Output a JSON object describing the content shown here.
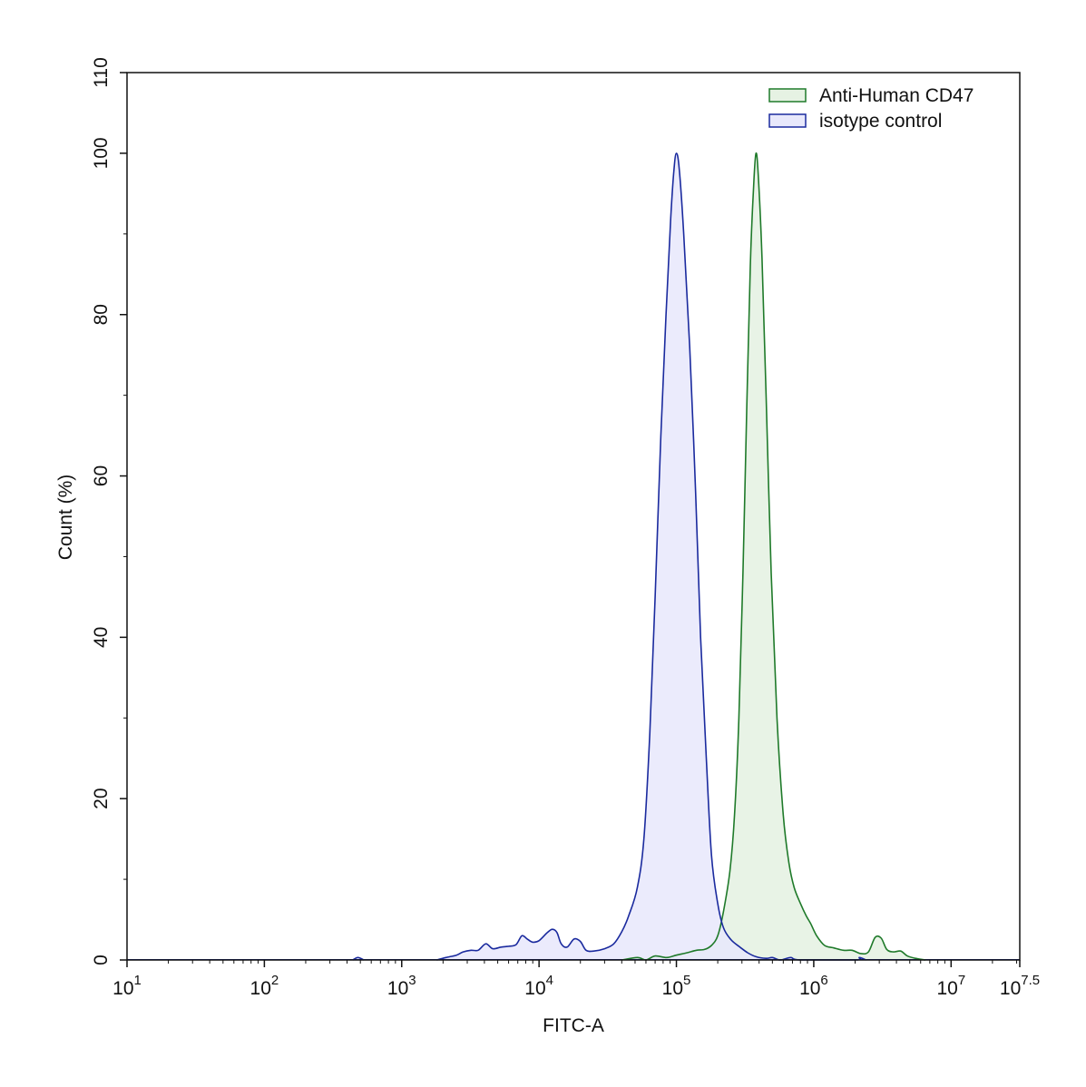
{
  "chart_data": {
    "type": "area",
    "xlabel": "FITC-A",
    "ylabel": "Count  (%)",
    "xscale": "log",
    "xlim": [
      10,
      31622776.6
    ],
    "ylim": [
      0,
      110
    ],
    "x_ticks": [
      {
        "value": 10,
        "base": "10",
        "exp": "1"
      },
      {
        "value": 100,
        "base": "10",
        "exp": "2"
      },
      {
        "value": 1000,
        "base": "10",
        "exp": "3"
      },
      {
        "value": 10000,
        "base": "10",
        "exp": "4"
      },
      {
        "value": 100000,
        "base": "10",
        "exp": "5"
      },
      {
        "value": 1000000,
        "base": "10",
        "exp": "6"
      },
      {
        "value": 10000000,
        "base": "10",
        "exp": "7"
      },
      {
        "value": 31622776.6,
        "base": "10",
        "exp": "7.5"
      }
    ],
    "y_ticks": [
      {
        "value": 0,
        "label": "0"
      },
      {
        "value": 20,
        "label": "20"
      },
      {
        "value": 40,
        "label": "40"
      },
      {
        "value": 60,
        "label": "60"
      },
      {
        "value": 80,
        "label": "80"
      },
      {
        "value": 100,
        "label": "100"
      },
      {
        "value": 110,
        "label": "110"
      }
    ],
    "legend_position": "top-right",
    "grid": false,
    "series": [
      {
        "name": "Anti-Human CD47",
        "stroke": "#1f7a2a",
        "fill": "#e6f2e3",
        "points": [
          [
            40000,
            0
          ],
          [
            52000,
            0.3
          ],
          [
            60000,
            0
          ],
          [
            70000,
            0.5
          ],
          [
            85000,
            0.3
          ],
          [
            100000,
            0.6
          ],
          [
            120000,
            0.9
          ],
          [
            140000,
            1.2
          ],
          [
            160000,
            1.3
          ],
          [
            180000,
            1.8
          ],
          [
            200000,
            3
          ],
          [
            220000,
            6
          ],
          [
            245000,
            11
          ],
          [
            265000,
            18
          ],
          [
            285000,
            30
          ],
          [
            305000,
            48
          ],
          [
            325000,
            68
          ],
          [
            345000,
            86
          ],
          [
            365000,
            96
          ],
          [
            380000,
            100
          ],
          [
            395000,
            97
          ],
          [
            420000,
            87
          ],
          [
            450000,
            70
          ],
          [
            490000,
            48
          ],
          [
            540000,
            30
          ],
          [
            600000,
            18
          ],
          [
            660000,
            12
          ],
          [
            720000,
            9
          ],
          [
            800000,
            7
          ],
          [
            880000,
            5.5
          ],
          [
            950000,
            4.5
          ],
          [
            1050000,
            3
          ],
          [
            1200000,
            1.8
          ],
          [
            1400000,
            1.5
          ],
          [
            1650000,
            1.2
          ],
          [
            1900000,
            1.2
          ],
          [
            2200000,
            0.8
          ],
          [
            2500000,
            1
          ],
          [
            2800000,
            2.8
          ],
          [
            3100000,
            2.7
          ],
          [
            3400000,
            1.3
          ],
          [
            3800000,
            1
          ],
          [
            4300000,
            1.1
          ],
          [
            4800000,
            0.5
          ],
          [
            5500000,
            0.2
          ],
          [
            6500000,
            0
          ]
        ]
      },
      {
        "name": "isotype control",
        "stroke": "#1a2a9e",
        "fill": "#e8e8fb",
        "points": [
          [
            1800,
            0
          ],
          [
            2100,
            0.3
          ],
          [
            2500,
            0.6
          ],
          [
            2800,
            1
          ],
          [
            3200,
            1.2
          ],
          [
            3600,
            1.2
          ],
          [
            4100,
            2
          ],
          [
            4600,
            1.4
          ],
          [
            5300,
            1.6
          ],
          [
            6000,
            1.7
          ],
          [
            6800,
            1.9
          ],
          [
            7500,
            3
          ],
          [
            8200,
            2.6
          ],
          [
            9000,
            2.2
          ],
          [
            10000,
            2.4
          ],
          [
            11500,
            3.4
          ],
          [
            12500,
            3.8
          ],
          [
            13500,
            3.4
          ],
          [
            14500,
            2
          ],
          [
            16000,
            1.6
          ],
          [
            18000,
            2.6
          ],
          [
            20000,
            2.3
          ],
          [
            22000,
            1.2
          ],
          [
            25000,
            1.1
          ],
          [
            30000,
            1.4
          ],
          [
            35000,
            2
          ],
          [
            40000,
            3.5
          ],
          [
            45000,
            5.5
          ],
          [
            52000,
            9
          ],
          [
            58000,
            15
          ],
          [
            64000,
            28
          ],
          [
            70000,
            45
          ],
          [
            77000,
            65
          ],
          [
            84000,
            80
          ],
          [
            91000,
            92
          ],
          [
            96000,
            98
          ],
          [
            100000,
            100
          ],
          [
            105000,
            98
          ],
          [
            113000,
            90
          ],
          [
            125000,
            76
          ],
          [
            138000,
            58
          ],
          [
            150000,
            40
          ],
          [
            165000,
            25
          ],
          [
            180000,
            13
          ],
          [
            200000,
            7
          ],
          [
            220000,
            4
          ],
          [
            250000,
            2.5
          ],
          [
            290000,
            1.6
          ],
          [
            330000,
            0.9
          ],
          [
            380000,
            0.4
          ],
          [
            450000,
            0.2
          ],
          [
            500000,
            0.3
          ],
          [
            570000,
            0
          ],
          [
            680000,
            0.3
          ],
          [
            800000,
            0
          ],
          [
            2000000,
            0
          ],
          [
            2150000,
            0.3
          ],
          [
            2400000,
            0
          ]
        ],
        "extra_points": [
          [
            440,
            0
          ],
          [
            480,
            0.3
          ],
          [
            530,
            0
          ]
        ]
      }
    ]
  }
}
